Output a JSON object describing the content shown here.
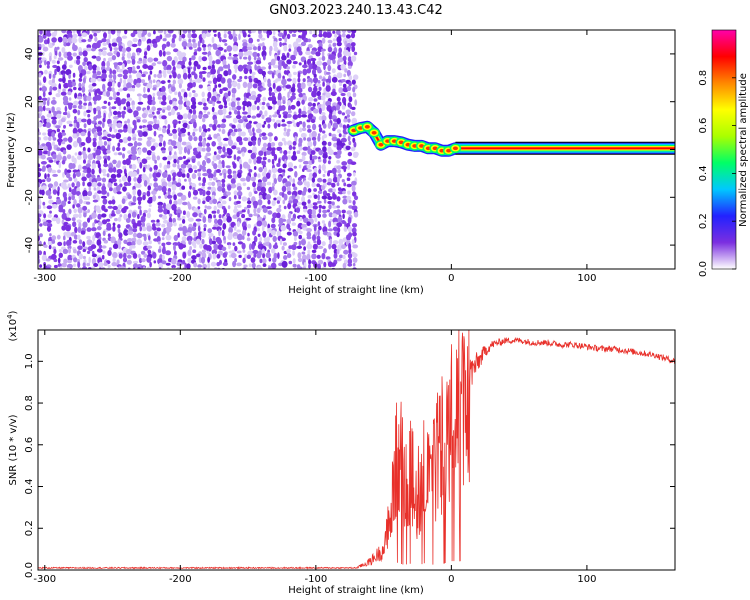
{
  "title": "GN03.2023.240.13.43.C42",
  "chart_data": [
    {
      "type": "heatmap",
      "xlabel": "Height of straight line (km)",
      "ylabel": "Frequency (Hz)",
      "xlim": [
        -305,
        165
      ],
      "ylim": [
        -50,
        50
      ],
      "x_ticks": [
        -300,
        -200,
        -100,
        0,
        100
      ],
      "x_tick_labels": [
        "-300",
        "-200",
        "-100",
        "0",
        "100"
      ],
      "y_ticks": [
        -40,
        -20,
        0,
        20,
        40
      ],
      "y_tick_labels": [
        "-40",
        "-20",
        "0",
        "20",
        "40"
      ],
      "noise_region_x": [
        -305,
        -72
      ],
      "noise_region_note": "scattered low-amplitude (purple/white) speckle over full frequency range",
      "ridge": {
        "x": [
          -72,
          -67,
          -62,
          -57,
          -52,
          -47,
          -42,
          -37,
          -32,
          -27,
          -22,
          -17,
          -12,
          -7,
          -2,
          3,
          10,
          165
        ],
        "y": [
          8,
          9,
          9.5,
          7,
          2,
          3.5,
          3.5,
          3,
          2,
          1.5,
          1.5,
          0.5,
          0.5,
          -0.5,
          -0.5,
          0.5,
          0.5,
          0.5
        ]
      },
      "colorbar": {
        "label": "Normalized spectral amplitude",
        "range": [
          0,
          1
        ],
        "ticks": [
          0.0,
          0.2,
          0.4,
          0.6,
          0.8
        ],
        "tick_labels": [
          "0.0",
          "0.2",
          "0.4",
          "0.6",
          "0.8"
        ],
        "colormap": [
          "#ffffff",
          "#7b2fe0",
          "#2222ff",
          "#00c8ff",
          "#00ff66",
          "#aaff00",
          "#ffff00",
          "#ff8800",
          "#ff0000",
          "#ff00aa"
        ]
      }
    },
    {
      "type": "line",
      "xlabel": "Height of straight line (km)",
      "ylabel": "SNR (10 * v/v)",
      "y_multiplier": "(x10",
      "y_multiplier_exp": "4",
      "y_multiplier_close": ")",
      "xlim": [
        -305,
        165
      ],
      "ylim": [
        0,
        1.15
      ],
      "x_ticks": [
        -300,
        -200,
        -100,
        0,
        100
      ],
      "x_tick_labels": [
        "-300",
        "-200",
        "-100",
        "0",
        "100"
      ],
      "y_ticks": [
        0.0,
        0.2,
        0.4,
        0.6,
        0.8,
        1.0
      ],
      "y_tick_labels": [
        "0.0",
        "0.2",
        "0.4",
        "0.6",
        "0.8",
        "1.0"
      ],
      "series": [
        {
          "color": "#e8302a",
          "x": [
            -305,
            -200,
            -80,
            -70,
            -60,
            -50,
            -45,
            -42,
            -40,
            -35,
            -30,
            -25,
            -20,
            -15,
            -10,
            -5,
            0,
            5,
            10,
            15,
            20,
            25,
            30,
            40,
            50,
            60,
            70,
            80,
            90,
            100,
            110,
            120,
            130,
            140,
            150,
            165
          ],
          "y": [
            0.01,
            0.01,
            0.01,
            0.01,
            0.04,
            0.1,
            0.3,
            0.55,
            0.7,
            0.5,
            0.6,
            0.4,
            0.65,
            0.45,
            0.7,
            0.65,
            0.85,
            0.85,
            0.95,
            0.95,
            1.0,
            1.05,
            1.08,
            1.1,
            1.1,
            1.09,
            1.09,
            1.08,
            1.08,
            1.07,
            1.06,
            1.06,
            1.05,
            1.04,
            1.03,
            1.0
          ],
          "noise_amplitude": [
            0.003,
            0.003,
            0.003,
            0.003,
            0.02,
            0.05,
            0.3,
            0.3,
            0.3,
            0.3,
            0.3,
            0.3,
            0.3,
            0.3,
            0.3,
            0.25,
            0.2,
            0.2,
            0.15,
            0.08,
            0.05,
            0.03,
            0.02,
            0.015,
            0.015,
            0.015,
            0.015,
            0.015,
            0.015,
            0.015,
            0.015,
            0.015,
            0.015,
            0.015,
            0.015,
            0.015
          ]
        }
      ]
    }
  ]
}
